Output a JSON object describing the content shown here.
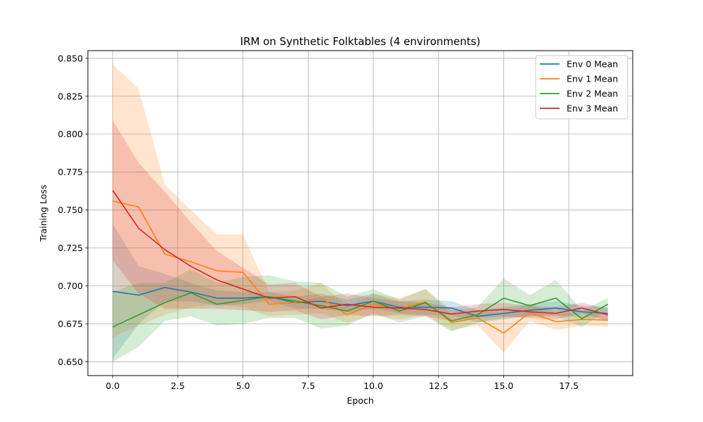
{
  "chart_data": {
    "type": "line",
    "title": "IRM on Synthetic Folktables (4 environments)",
    "xlabel": "Epoch",
    "ylabel": "Training Loss",
    "xlim": [
      -0.95,
      19.95
    ],
    "ylim": [
      0.641,
      0.855
    ],
    "xticks": [
      0.0,
      2.5,
      5.0,
      7.5,
      10.0,
      12.5,
      15.0,
      17.5
    ],
    "xtick_labels": [
      "0.0",
      "2.5",
      "5.0",
      "7.5",
      "10.0",
      "12.5",
      "15.0",
      "17.5"
    ],
    "yticks": [
      0.65,
      0.675,
      0.7,
      0.725,
      0.75,
      0.775,
      0.8,
      0.825,
      0.85
    ],
    "ytick_labels": [
      "0.650",
      "0.675",
      "0.700",
      "0.725",
      "0.750",
      "0.775",
      "0.800",
      "0.825",
      "0.850"
    ],
    "grid": true,
    "legend_position": "top-right",
    "x": [
      0,
      1,
      2,
      3,
      4,
      5,
      6,
      7,
      8,
      9,
      10,
      11,
      12,
      13,
      14,
      15,
      16,
      17,
      18,
      19
    ],
    "series": [
      {
        "name": "Env 0 Mean",
        "color": "#1f77b4",
        "values": [
          0.6965,
          0.694,
          0.699,
          0.696,
          0.692,
          0.692,
          0.693,
          0.689,
          0.69,
          0.687,
          0.69,
          0.686,
          0.686,
          0.6855,
          0.68,
          0.682,
          0.684,
          0.6855,
          0.683,
          0.682
        ],
        "lower": [
          0.652,
          0.675,
          0.69,
          0.69,
          0.687,
          0.688,
          0.69,
          0.685,
          0.685,
          0.683,
          0.685,
          0.682,
          0.681,
          0.681,
          0.676,
          0.678,
          0.68,
          0.681,
          0.679,
          0.678
        ],
        "upper": [
          0.741,
          0.713,
          0.708,
          0.702,
          0.697,
          0.696,
          0.696,
          0.693,
          0.695,
          0.691,
          0.695,
          0.69,
          0.691,
          0.69,
          0.684,
          0.686,
          0.688,
          0.69,
          0.687,
          0.686
        ]
      },
      {
        "name": "Env 1 Mean",
        "color": "#ff7f0e",
        "values": [
          0.756,
          0.752,
          0.721,
          0.716,
          0.71,
          0.709,
          0.688,
          0.689,
          0.692,
          0.681,
          0.688,
          0.685,
          0.6895,
          0.676,
          0.679,
          0.669,
          0.6825,
          0.6765,
          0.678,
          0.6775
        ],
        "lower": [
          0.666,
          0.674,
          0.681,
          0.686,
          0.688,
          0.686,
          0.68,
          0.681,
          0.682,
          0.676,
          0.681,
          0.678,
          0.681,
          0.671,
          0.674,
          0.656,
          0.677,
          0.671,
          0.674,
          0.673
        ],
        "upper": [
          0.846,
          0.83,
          0.767,
          0.75,
          0.734,
          0.734,
          0.696,
          0.697,
          0.702,
          0.686,
          0.695,
          0.692,
          0.698,
          0.681,
          0.684,
          0.682,
          0.688,
          0.682,
          0.682,
          0.682
        ]
      },
      {
        "name": "Env 2 Mean",
        "color": "#2ca02c",
        "values": [
          0.673,
          0.681,
          0.689,
          0.6955,
          0.688,
          0.6905,
          0.693,
          0.69,
          0.687,
          0.6835,
          0.69,
          0.6835,
          0.689,
          0.677,
          0.681,
          0.692,
          0.687,
          0.692,
          0.6785,
          0.688
        ],
        "lower": [
          0.65,
          0.66,
          0.677,
          0.68,
          0.674,
          0.675,
          0.679,
          0.679,
          0.672,
          0.674,
          0.682,
          0.676,
          0.68,
          0.67,
          0.676,
          0.679,
          0.68,
          0.68,
          0.673,
          0.684
        ],
        "upper": [
          0.696,
          0.702,
          0.702,
          0.711,
          0.702,
          0.706,
          0.707,
          0.703,
          0.702,
          0.693,
          0.698,
          0.691,
          0.698,
          0.684,
          0.686,
          0.705,
          0.694,
          0.704,
          0.684,
          0.692
        ]
      },
      {
        "name": "Env 3 Mean",
        "color": "#d62728",
        "values": [
          0.763,
          0.738,
          0.724,
          0.713,
          0.704,
          0.698,
          0.692,
          0.693,
          0.6855,
          0.688,
          0.686,
          0.6855,
          0.6845,
          0.6815,
          0.6835,
          0.6845,
          0.683,
          0.682,
          0.6855,
          0.681
        ],
        "lower": [
          0.717,
          0.695,
          0.685,
          0.685,
          0.685,
          0.684,
          0.683,
          0.684,
          0.678,
          0.681,
          0.68,
          0.681,
          0.68,
          0.677,
          0.679,
          0.68,
          0.679,
          0.678,
          0.682,
          0.677
        ],
        "upper": [
          0.809,
          0.781,
          0.762,
          0.742,
          0.723,
          0.712,
          0.701,
          0.702,
          0.693,
          0.695,
          0.692,
          0.69,
          0.689,
          0.686,
          0.688,
          0.689,
          0.687,
          0.686,
          0.689,
          0.685
        ]
      }
    ]
  }
}
